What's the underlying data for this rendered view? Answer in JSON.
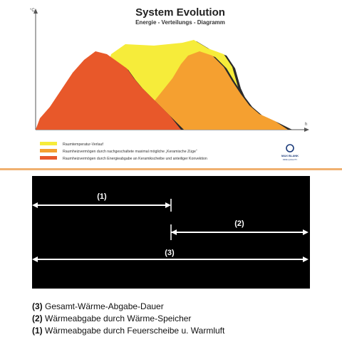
{
  "chart": {
    "title": "System Evolution",
    "subtitle": "Energie - Verteilungs - Diagramm",
    "y_unit": "°C",
    "x_unit": "h",
    "colors": {
      "yellow": "#f6ec3a",
      "orange": "#f5a030",
      "red": "#e8582a",
      "shadow": "#2a2a2a"
    },
    "legend": [
      {
        "color": "#f6ec3a",
        "label": "Raumtemperatur-Verlauf"
      },
      {
        "color": "#f5a030",
        "label": "Raumheizvermögen durch nachgeschaltete maximal mögliche „Keramische Züge“"
      },
      {
        "color": "#e8582a",
        "label": "Raumheizvermögen durch Energieabgabe an Keramikscheibe und anteiliger Konvektion"
      }
    ],
    "logo": {
      "name": "MAX BLANK",
      "tagline": "FIRE QUALITY",
      "icon": "ring-logo-icon"
    }
  },
  "ranges": [
    {
      "label": "(1)"
    },
    {
      "label": "(2)"
    },
    {
      "label": "(3)"
    }
  ],
  "notes": [
    {
      "num": "(3)",
      "text": " Gesamt-Wärme-Abgabe-Dauer"
    },
    {
      "num": "(2)",
      "text": " Wärmeabgabe durch Wärme-Speicher"
    },
    {
      "num": "(1)",
      "text": " Wärmeabgabe durch Feuerscheibe u. Warmluft"
    }
  ]
}
